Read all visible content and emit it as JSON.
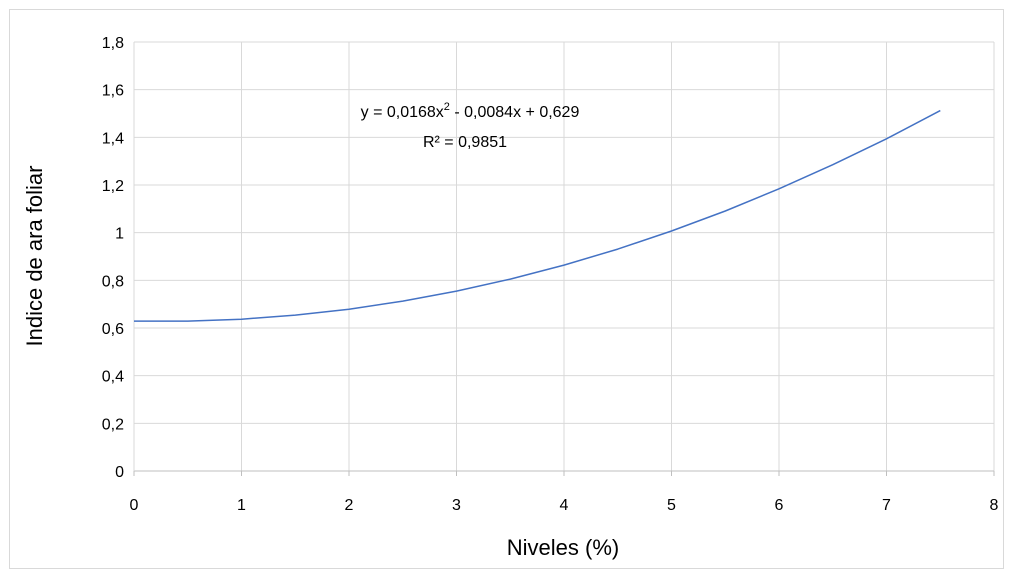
{
  "chart_data": {
    "type": "line",
    "title": "",
    "xlabel": "Niveles (%)",
    "ylabel": "Indice de ara foliar",
    "xlim": [
      0,
      8
    ],
    "ylim": [
      0,
      1.8
    ],
    "x_ticks": [
      "0",
      "1",
      "2",
      "3",
      "4",
      "5",
      "6",
      "7",
      "8"
    ],
    "y_ticks": [
      "0",
      "0,2",
      "0,4",
      "0,6",
      "0,8",
      "1",
      "1,2",
      "1,4",
      "1,6",
      "1,8"
    ],
    "grid": true,
    "series": [
      {
        "name": "",
        "color": "#4472c4",
        "x": [
          0,
          0.5,
          1,
          1.5,
          2,
          2.5,
          3,
          3.5,
          4,
          4.5,
          5,
          5.5,
          6,
          6.5,
          7,
          7.5
        ],
        "y": [
          0.629,
          0.629,
          0.637,
          0.654,
          0.679,
          0.713,
          0.755,
          0.805,
          0.864,
          0.931,
          1.007,
          1.091,
          1.184,
          1.285,
          1.394,
          1.512
        ]
      }
    ],
    "trendline": {
      "equation": {
        "prefix": "y = 0,0168x",
        "superscript": "2",
        "suffix": " - 0,0084x + 0,629"
      },
      "r_squared": "R² = 0,9851"
    }
  }
}
